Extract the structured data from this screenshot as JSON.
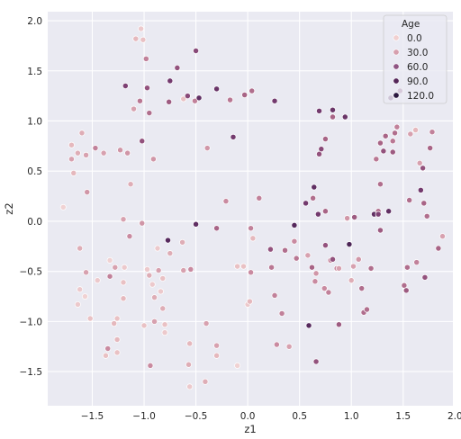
{
  "chart_data": {
    "type": "scatter",
    "title": "",
    "xlabel": "z1",
    "ylabel": "z2",
    "xlim": [
      -1.93,
      1.98
    ],
    "ylim": [
      -1.84,
      2.09
    ],
    "xticks": [
      -1.5,
      -1.0,
      -0.5,
      0.0,
      0.5,
      1.0,
      1.5,
      2.0
    ],
    "xtick_labels": [
      "−1.5",
      "−1.0",
      "−0.5",
      "0.0",
      "0.5",
      "1.0",
      "1.5",
      "2.0"
    ],
    "yticks": [
      -1.5,
      -1.0,
      -0.5,
      0.0,
      0.5,
      1.0,
      1.5,
      2.0
    ],
    "ytick_labels": [
      "−1.5",
      "−1.0",
      "−0.5",
      "0.0",
      "0.5",
      "1.0",
      "1.5",
      "2.0"
    ],
    "grid": true,
    "background_color": "#eaeaf2",
    "legend": {
      "title": "Age",
      "placement": "top-right",
      "entries": [
        {
          "label": "0.0",
          "value": 0,
          "color": "#f1d0d0"
        },
        {
          "label": "30.0",
          "value": 30,
          "color": "#d69fae"
        },
        {
          "label": "60.0",
          "value": 60,
          "color": "#8f5483"
        },
        {
          "label": "90.0",
          "value": 90,
          "color": "#552659"
        },
        {
          "label": "120.0",
          "value": 120,
          "color": "#2b1840"
        }
      ]
    },
    "hue_range": [
      0,
      120
    ],
    "colormap": [
      "#f3dada",
      "#e5b8bd",
      "#c98aa0",
      "#a86486",
      "#7d4073",
      "#56295d",
      "#2d1a42"
    ],
    "points": [
      [
        -1.78,
        0.14,
        5
      ],
      [
        -1.7,
        0.76,
        20
      ],
      [
        -1.7,
        0.62,
        30
      ],
      [
        -1.68,
        0.48,
        20
      ],
      [
        -1.64,
        0.68,
        25
      ],
      [
        -1.6,
        0.88,
        25
      ],
      [
        -1.56,
        0.66,
        30
      ],
      [
        -1.55,
        0.29,
        35
      ],
      [
        -1.62,
        -0.27,
        25
      ],
      [
        -1.56,
        -0.51,
        30
      ],
      [
        -1.62,
        -0.68,
        10
      ],
      [
        -1.57,
        -0.75,
        5
      ],
      [
        -1.64,
        -0.83,
        10
      ],
      [
        -1.52,
        -0.97,
        15
      ],
      [
        -1.45,
        -0.59,
        10
      ],
      [
        -1.47,
        0.73,
        45
      ],
      [
        -1.39,
        0.68,
        30
      ],
      [
        -1.33,
        -0.39,
        5
      ],
      [
        -1.28,
        -0.46,
        30
      ],
      [
        -1.33,
        -0.55,
        45
      ],
      [
        -1.35,
        -1.27,
        40
      ],
      [
        -1.37,
        -1.34,
        15
      ],
      [
        -1.29,
        -1.02,
        20
      ],
      [
        -1.26,
        -0.97,
        15
      ],
      [
        -1.26,
        -1.18,
        20
      ],
      [
        -1.26,
        -1.31,
        15
      ],
      [
        -1.23,
        0.71,
        35
      ],
      [
        -1.2,
        0.02,
        30
      ],
      [
        -1.19,
        -0.46,
        10
      ],
      [
        -1.2,
        -0.61,
        15
      ],
      [
        -1.2,
        -0.77,
        20
      ],
      [
        -1.18,
        1.35,
        80
      ],
      [
        -1.16,
        0.68,
        35
      ],
      [
        -1.14,
        -0.15,
        40
      ],
      [
        -1.13,
        0.37,
        25
      ],
      [
        -1.1,
        1.12,
        30
      ],
      [
        -1.08,
        1.82,
        20
      ],
      [
        -1.04,
        1.2,
        50
      ],
      [
        -1.02,
        -0.02,
        35
      ],
      [
        -1.03,
        1.92,
        10
      ],
      [
        -1.02,
        0.8,
        70
      ],
      [
        -1.01,
        1.81,
        15
      ],
      [
        -1.0,
        -1.04,
        15
      ],
      [
        -0.98,
        1.62,
        45
      ],
      [
        -0.97,
        1.33,
        70
      ],
      [
        -0.95,
        1.08,
        55
      ],
      [
        -0.97,
        -0.48,
        10
      ],
      [
        -0.95,
        -0.54,
        25
      ],
      [
        -0.92,
        -0.63,
        10
      ],
      [
        -0.9,
        -0.76,
        25
      ],
      [
        -0.94,
        -1.44,
        40
      ],
      [
        -0.91,
        0.62,
        35
      ],
      [
        -0.9,
        -1.0,
        30
      ],
      [
        -0.87,
        -0.27,
        10
      ],
      [
        -0.86,
        -0.49,
        30
      ],
      [
        -0.82,
        -0.57,
        15
      ],
      [
        -0.84,
        -0.7,
        10
      ],
      [
        -0.82,
        -0.87,
        25
      ],
      [
        -0.8,
        -1.03,
        15
      ],
      [
        -0.8,
        -1.11,
        10
      ],
      [
        -0.77,
        -0.19,
        100
      ],
      [
        -0.75,
        -0.32,
        25
      ],
      [
        -0.76,
        1.19,
        65
      ],
      [
        -0.75,
        1.4,
        85
      ],
      [
        -0.68,
        1.53,
        70
      ],
      [
        -0.63,
        -0.21,
        25
      ],
      [
        -0.62,
        -0.49,
        30
      ],
      [
        -0.62,
        1.22,
        15
      ],
      [
        -0.58,
        1.25,
        75
      ],
      [
        -0.57,
        -1.43,
        25
      ],
      [
        -0.56,
        -1.22,
        20
      ],
      [
        -0.56,
        -1.65,
        10
      ],
      [
        -0.55,
        -0.48,
        40
      ],
      [
        -0.51,
        1.2,
        45
      ],
      [
        -0.5,
        1.7,
        75
      ],
      [
        -0.47,
        1.23,
        95
      ],
      [
        -0.5,
        -0.03,
        95
      ],
      [
        -0.41,
        -1.6,
        25
      ],
      [
        -0.4,
        -1.02,
        30
      ],
      [
        -0.39,
        0.73,
        35
      ],
      [
        -0.3,
        -0.07,
        60
      ],
      [
        -0.3,
        -1.24,
        30
      ],
      [
        -0.3,
        -1.34,
        20
      ],
      [
        -0.3,
        1.32,
        90
      ],
      [
        -0.21,
        0.2,
        40
      ],
      [
        -0.17,
        1.21,
        50
      ],
      [
        -0.14,
        0.84,
        85
      ],
      [
        -0.1,
        -0.45,
        15
      ],
      [
        -0.1,
        -1.44,
        5
      ],
      [
        -0.04,
        -0.45,
        15
      ],
      [
        -0.03,
        1.26,
        60
      ],
      [
        0.0,
        -0.83,
        10
      ],
      [
        0.02,
        -0.8,
        20
      ],
      [
        0.03,
        -0.51,
        40
      ],
      [
        0.04,
        1.3,
        55
      ],
      [
        0.03,
        -0.07,
        45
      ],
      [
        0.05,
        -0.17,
        20
      ],
      [
        0.11,
        0.23,
        45
      ],
      [
        0.22,
        -0.28,
        70
      ],
      [
        0.23,
        -0.46,
        50
      ],
      [
        0.26,
        -0.74,
        45
      ],
      [
        0.26,
        1.2,
        85
      ],
      [
        0.28,
        -1.23,
        40
      ],
      [
        0.33,
        -0.92,
        45
      ],
      [
        0.36,
        -0.29,
        55
      ],
      [
        0.4,
        -1.25,
        30
      ],
      [
        0.45,
        -0.2,
        40
      ],
      [
        0.47,
        -0.37,
        50
      ],
      [
        0.45,
        -0.04,
        100
      ],
      [
        0.56,
        0.18,
        85
      ],
      [
        0.59,
        -1.04,
        100
      ],
      [
        0.58,
        -0.34,
        30
      ],
      [
        0.62,
        -0.46,
        60
      ],
      [
        0.63,
        0.23,
        55
      ],
      [
        0.64,
        0.34,
        95
      ],
      [
        0.65,
        -0.6,
        40
      ],
      [
        0.66,
        -0.52,
        35
      ],
      [
        0.66,
        -1.4,
        70
      ],
      [
        0.68,
        0.07,
        85
      ],
      [
        0.69,
        0.67,
        70
      ],
      [
        0.69,
        1.1,
        85
      ],
      [
        0.71,
        0.72,
        75
      ],
      [
        0.74,
        -0.67,
        40
      ],
      [
        0.75,
        0.1,
        60
      ],
      [
        0.75,
        0.82,
        60
      ],
      [
        0.75,
        -0.24,
        70
      ],
      [
        0.78,
        -0.71,
        45
      ],
      [
        0.8,
        -0.39,
        40
      ],
      [
        0.82,
        1.04,
        60
      ],
      [
        0.82,
        1.11,
        90
      ],
      [
        0.82,
        -0.38,
        70
      ],
      [
        0.86,
        -0.47,
        40
      ],
      [
        0.88,
        -1.03,
        65
      ],
      [
        0.88,
        -0.47,
        30
      ],
      [
        0.94,
        1.04,
        90
      ],
      [
        0.96,
        0.03,
        35
      ],
      [
        0.98,
        -0.23,
        105
      ],
      [
        1.0,
        -0.59,
        25
      ],
      [
        1.02,
        -0.45,
        30
      ],
      [
        1.03,
        0.04,
        65
      ],
      [
        1.07,
        -0.38,
        35
      ],
      [
        1.1,
        -0.67,
        55
      ],
      [
        1.12,
        -0.91,
        55
      ],
      [
        1.15,
        -0.88,
        55
      ],
      [
        1.19,
        -0.47,
        55
      ],
      [
        1.22,
        0.07,
        95
      ],
      [
        1.24,
        0.62,
        50
      ],
      [
        1.26,
        0.1,
        55
      ],
      [
        1.26,
        0.07,
        80
      ],
      [
        1.28,
        -0.09,
        65
      ],
      [
        1.28,
        0.37,
        55
      ],
      [
        1.28,
        0.78,
        60
      ],
      [
        1.31,
        0.7,
        70
      ],
      [
        1.33,
        0.85,
        60
      ],
      [
        1.36,
        0.1,
        95
      ],
      [
        1.38,
        1.23,
        95
      ],
      [
        1.4,
        0.8,
        50
      ],
      [
        1.4,
        0.69,
        65
      ],
      [
        1.42,
        0.88,
        55
      ],
      [
        1.44,
        0.94,
        45
      ],
      [
        1.47,
        1.3,
        75
      ],
      [
        1.51,
        -0.64,
        55
      ],
      [
        1.53,
        -0.69,
        65
      ],
      [
        1.54,
        -0.46,
        55
      ],
      [
        1.56,
        0.21,
        55
      ],
      [
        1.57,
        0.87,
        30
      ],
      [
        1.62,
        0.91,
        20
      ],
      [
        1.63,
        -0.41,
        45
      ],
      [
        1.66,
        0.58,
        30
      ],
      [
        1.67,
        0.31,
        85
      ],
      [
        1.69,
        0.53,
        70
      ],
      [
        1.7,
        0.18,
        60
      ],
      [
        1.71,
        -0.56,
        70
      ],
      [
        1.73,
        0.05,
        55
      ],
      [
        1.76,
        0.73,
        60
      ],
      [
        1.78,
        0.89,
        45
      ],
      [
        1.84,
        -0.27,
        60
      ],
      [
        1.88,
        -0.15,
        30
      ]
    ]
  }
}
